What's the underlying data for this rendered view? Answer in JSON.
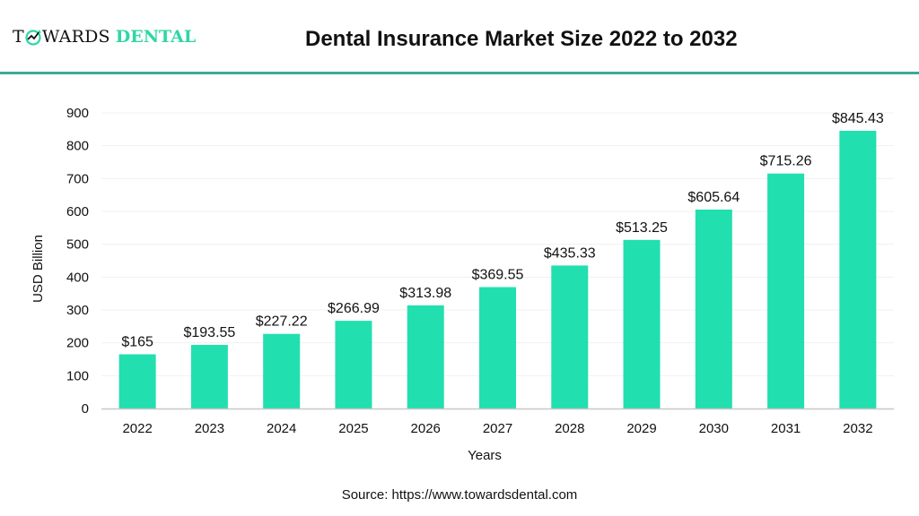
{
  "header": {
    "logo_part1": "T",
    "logo_part2": "WARDS",
    "logo_part3": "DENTAL",
    "logo_text": "TOWARDS DENTAL",
    "title": "Dental Insurance Market Size 2022 to 2032"
  },
  "colors": {
    "bar": "#22dfaf",
    "rule": "#3fa995",
    "logo_green": "#2fd6a6"
  },
  "source": "Source: https://www.towardsdental.com",
  "chart_data": {
    "type": "bar",
    "title": "Dental Insurance Market Size 2022 to 2032",
    "xlabel": "Years",
    "ylabel": "USD Billion",
    "ylim": [
      0,
      900
    ],
    "yticks": [
      0,
      100,
      200,
      300,
      400,
      500,
      600,
      700,
      800,
      900
    ],
    "grid": true,
    "categories": [
      "2022",
      "2023",
      "2024",
      "2025",
      "2026",
      "2027",
      "2028",
      "2029",
      "2030",
      "2031",
      "2032"
    ],
    "values": [
      165,
      193.55,
      227.22,
      266.99,
      313.98,
      369.55,
      435.33,
      513.25,
      605.64,
      715.26,
      845.43
    ],
    "labels": [
      "$165",
      "$193.55",
      "$227.22",
      "$266.99",
      "$313.98",
      "$369.55",
      "$435.33",
      "$513.25",
      "$605.64",
      "$715.26",
      "$845.43"
    ]
  }
}
